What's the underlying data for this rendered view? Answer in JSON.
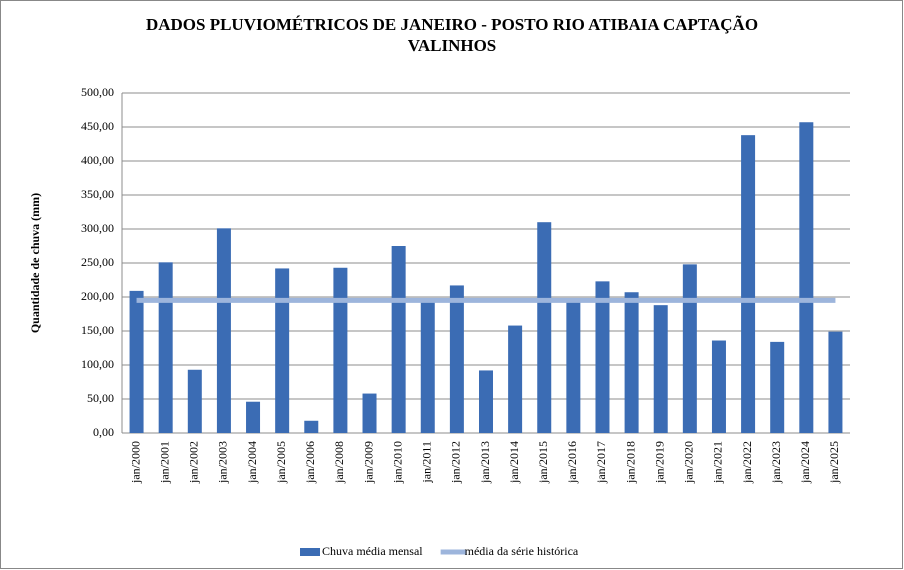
{
  "chart_data": {
    "type": "bar",
    "title": [
      "DADOS PLUVIOMÉTRICOS DE JANEIRO - POSTO RIO ATIBAIA CAPTAÇÃO",
      "VALINHOS"
    ],
    "y_label": "Quantidade de chuva (mm)",
    "categories": [
      "jan/2000",
      "jan/2001",
      "jan/2002",
      "jan/2003",
      "jan/2004",
      "jan/2005",
      "jan/2006",
      "jan/2008",
      "jan/2009",
      "jan/2010",
      "jan/2011",
      "jan/2012",
      "jan/2013",
      "jan/2014",
      "jan/2015",
      "jan/2016",
      "jan/2017",
      "jan/2018",
      "jan/2019",
      "jan/2020",
      "jan/2021",
      "jan/2022",
      "jan/2023",
      "jan/2024",
      "jan/2025"
    ],
    "series": [
      {
        "name": "Chuva média mensal",
        "type": "bar",
        "color": "#3b6cb4",
        "values": [
          209,
          251,
          93,
          301,
          46,
          242,
          18,
          243,
          58,
          275,
          197,
          217,
          92,
          158,
          310,
          192,
          223,
          207,
          188,
          248,
          136,
          438,
          134,
          457,
          149
        ]
      },
      {
        "name": "média da série histórica",
        "type": "line",
        "color": "#9db5dc",
        "values": [
          195,
          195,
          195,
          195,
          195,
          195,
          195,
          195,
          195,
          195,
          195,
          195,
          195,
          195,
          195,
          195,
          195,
          195,
          195,
          195,
          195,
          195,
          195,
          195,
          195
        ]
      }
    ],
    "ylim": [
      0,
      500
    ],
    "yticks": [
      {
        "value": 0,
        "label": "0,00"
      },
      {
        "value": 50,
        "label": "50,00"
      },
      {
        "value": 100,
        "label": "100,00"
      },
      {
        "value": 150,
        "label": "150,00"
      },
      {
        "value": 200,
        "label": "200,00"
      },
      {
        "value": 250,
        "label": "250,00"
      },
      {
        "value": 300,
        "label": "300,00"
      },
      {
        "value": 350,
        "label": "350,00"
      },
      {
        "value": 400,
        "label": "400,00"
      },
      {
        "value": 450,
        "label": "450,00"
      },
      {
        "value": 500,
        "label": "500,00"
      }
    ],
    "grid": true,
    "legend": "bottom"
  }
}
